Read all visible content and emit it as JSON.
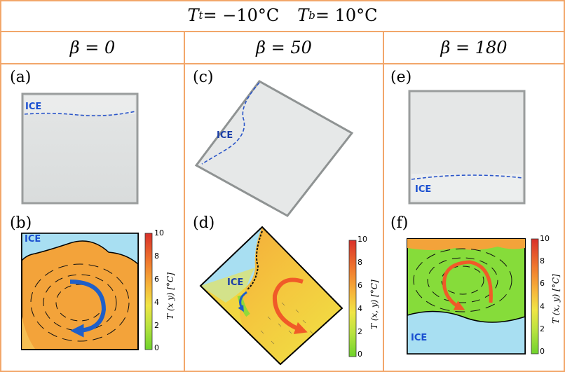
{
  "title": "Tt = −10°C     Tb = 10°C",
  "title_parts": {
    "Tt": "T",
    "t_sub": "t",
    "eq1": " = −10°C",
    "Tb": "T",
    "b_sub": "b",
    "eq2": " = 10°C"
  },
  "columns": [
    {
      "label": "β = 0"
    },
    {
      "label": "β = 50"
    },
    {
      "label": "β = 180"
    }
  ],
  "panels": [
    {
      "id": "a",
      "label": "(a)",
      "ice_label": "ICE"
    },
    {
      "id": "b",
      "label": "(b)",
      "ice_label": "ICE"
    },
    {
      "id": "c",
      "label": "(c)",
      "ice_label": "ICE"
    },
    {
      "id": "d",
      "label": "(d)",
      "ice_label": "ICE"
    },
    {
      "id": "e",
      "label": "(e)",
      "ice_label": "ICE"
    },
    {
      "id": "f",
      "label": "(f)",
      "ice_label": "ICE"
    }
  ],
  "colorbar": {
    "title": "T (x, y) [°C]",
    "title_b": "T (x y) [°C]",
    "ticks": [
      "10",
      "8",
      "6",
      "4",
      "2",
      "0"
    ],
    "range": [
      0,
      10
    ]
  },
  "colors": {
    "border": "#f2a66a",
    "ice_water": "#a8dff2",
    "warm": "#f3a33a",
    "green": "#86dc3a",
    "blue_arrow": "#1f5fc8",
    "red_arrow": "#f05a28"
  }
}
